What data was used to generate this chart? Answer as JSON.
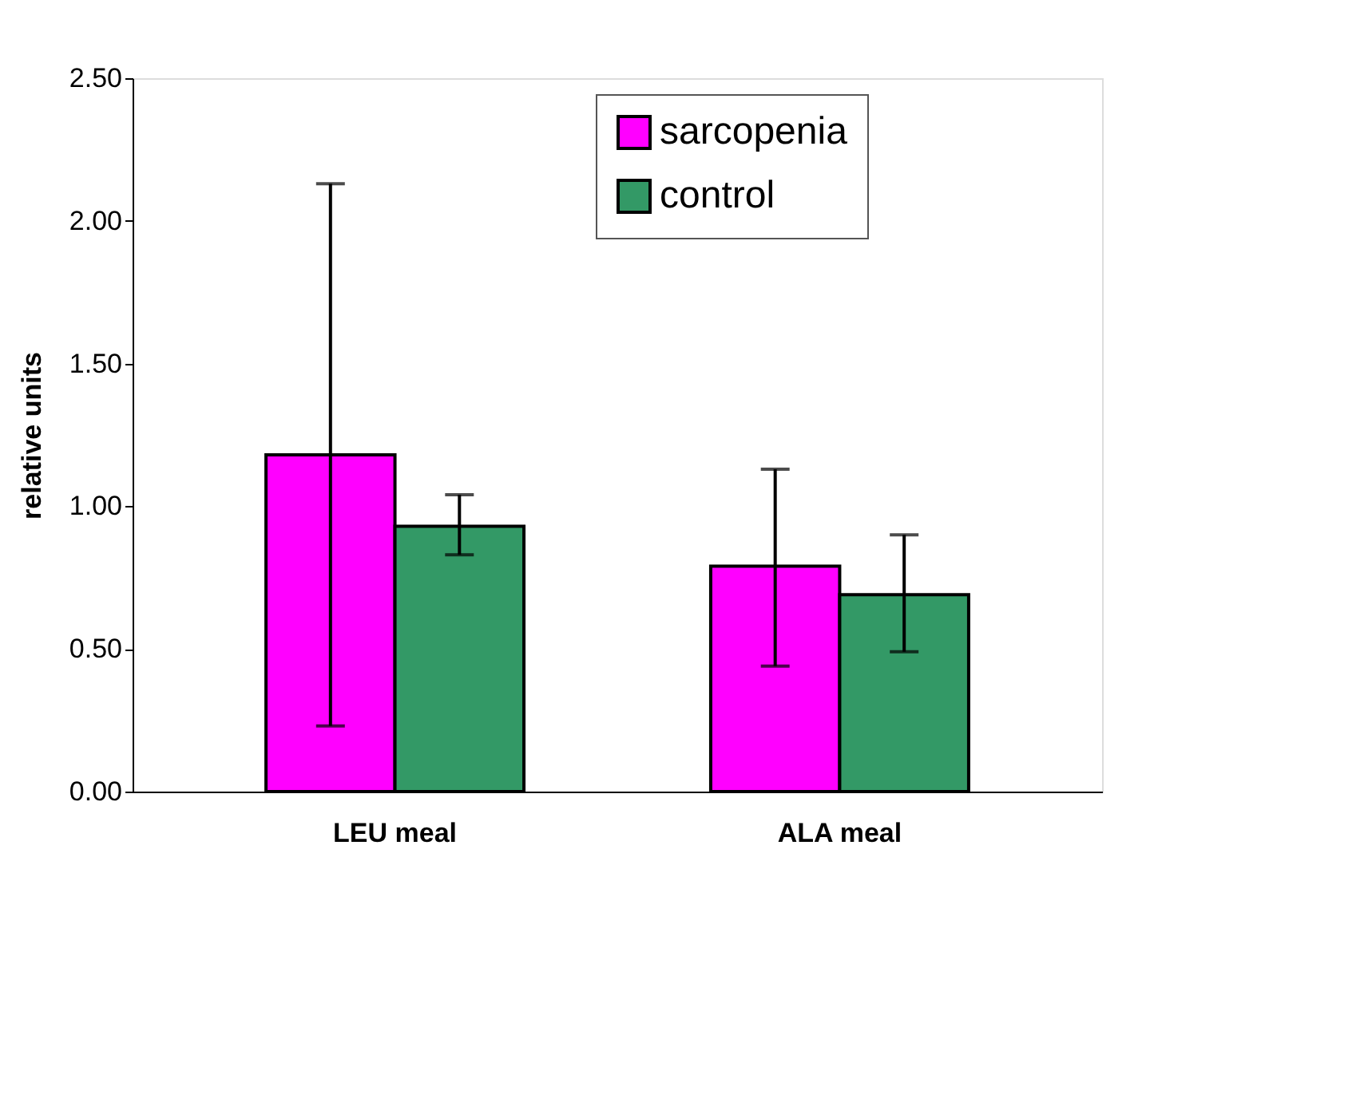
{
  "chart_data": {
    "type": "bar",
    "ylabel": "relative units",
    "categories": [
      "LEU meal",
      "ALA meal"
    ],
    "series": [
      {
        "name": "sarcopenia",
        "color": "#ff00ff",
        "values": [
          1.18,
          0.79
        ],
        "errors": [
          [
            0.23,
            2.13
          ],
          [
            0.44,
            1.13
          ]
        ]
      },
      {
        "name": "control",
        "color": "#339966",
        "values": [
          0.93,
          0.69
        ],
        "errors": [
          [
            0.83,
            1.04
          ],
          [
            0.49,
            0.9
          ]
        ]
      }
    ],
    "ylim": [
      0,
      2.5
    ],
    "yticks": [
      {
        "value": 0,
        "label": "0.00"
      },
      {
        "value": 0.5,
        "label": "0.50"
      },
      {
        "value": 1,
        "label": "1.00"
      },
      {
        "value": 1.5,
        "label": "1.50"
      },
      {
        "value": 2,
        "label": "2.00"
      },
      {
        "value": 2.5,
        "label": "2.50"
      }
    ],
    "grid": false,
    "legend": "top"
  }
}
